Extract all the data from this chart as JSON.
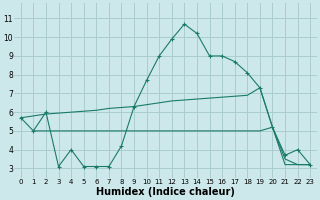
{
  "line1_x": [
    0,
    1,
    2,
    3,
    4,
    5,
    6,
    7,
    8,
    9,
    10,
    11,
    12,
    13,
    14,
    15,
    16,
    17,
    18,
    19,
    20,
    21,
    22,
    23
  ],
  "line1_y": [
    5.7,
    5.0,
    6.0,
    3.1,
    4.0,
    3.1,
    3.1,
    3.1,
    4.2,
    6.3,
    7.7,
    9.0,
    9.9,
    10.7,
    10.2,
    9.0,
    9.0,
    8.7,
    8.1,
    7.3,
    5.2,
    3.7,
    4.0,
    3.2
  ],
  "line2_x": [
    0,
    1,
    2,
    3,
    4,
    5,
    6,
    7,
    8,
    9,
    10,
    11,
    12,
    13,
    14,
    15,
    16,
    17,
    18,
    19,
    20,
    21,
    22,
    23
  ],
  "line2_y": [
    5.7,
    5.8,
    5.9,
    5.95,
    6.0,
    6.05,
    6.1,
    6.2,
    6.25,
    6.3,
    6.4,
    6.5,
    6.6,
    6.65,
    6.7,
    6.75,
    6.8,
    6.85,
    6.9,
    7.3,
    5.2,
    3.5,
    3.2,
    3.2
  ],
  "line3_x": [
    1,
    2,
    3,
    4,
    5,
    6,
    7,
    8,
    9,
    10,
    11,
    12,
    13,
    14,
    15,
    16,
    17,
    18,
    19,
    20,
    21,
    22,
    23
  ],
  "line3_y": [
    5.0,
    5.0,
    5.0,
    5.0,
    5.0,
    5.0,
    5.0,
    5.0,
    5.0,
    5.0,
    5.0,
    5.0,
    5.0,
    5.0,
    5.0,
    5.0,
    5.0,
    5.0,
    5.0,
    5.2,
    3.2,
    3.2,
    3.2
  ],
  "line_color": "#1a7a6a",
  "bg_color": "#cde8ea",
  "grid_color": "#aacdd0",
  "xlabel": "Humidex (Indice chaleur)",
  "xlabel_fontsize": 7,
  "ylabel_ticks": [
    3,
    4,
    5,
    6,
    7,
    8,
    9,
    10,
    11
  ],
  "xlabel_ticks": [
    0,
    1,
    2,
    3,
    4,
    5,
    6,
    7,
    8,
    9,
    10,
    11,
    12,
    13,
    14,
    15,
    16,
    17,
    18,
    19,
    20,
    21,
    22,
    23
  ],
  "xlim": [
    -0.5,
    23.5
  ],
  "ylim": [
    2.5,
    11.8
  ]
}
